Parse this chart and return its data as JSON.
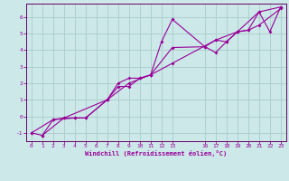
{
  "xlabel": "Windchill (Refroidissement éolien,°C)",
  "bg_color": "#cce8e8",
  "grid_color": "#aacccc",
  "line_color": "#990099",
  "spine_color": "#660066",
  "xlim": [
    -0.5,
    23.5
  ],
  "ylim": [
    -1.5,
    6.8
  ],
  "yticks": [
    -1,
    0,
    1,
    2,
    3,
    4,
    5,
    6
  ],
  "xticks": [
    0,
    1,
    2,
    3,
    4,
    5,
    6,
    7,
    8,
    9,
    10,
    11,
    12,
    13,
    16,
    17,
    18,
    19,
    20,
    21,
    22,
    23
  ],
  "line1": [
    [
      0,
      -1.0
    ],
    [
      1,
      -1.15
    ],
    [
      2,
      -0.2
    ],
    [
      3,
      -0.1
    ],
    [
      4,
      -0.1
    ],
    [
      5,
      -0.1
    ],
    [
      7,
      1.0
    ],
    [
      8,
      2.0
    ],
    [
      9,
      2.3
    ],
    [
      10,
      2.3
    ],
    [
      11,
      2.5
    ],
    [
      12,
      4.5
    ],
    [
      13,
      5.85
    ],
    [
      16,
      4.2
    ],
    [
      17,
      4.6
    ],
    [
      18,
      4.5
    ],
    [
      19,
      5.1
    ],
    [
      20,
      5.2
    ],
    [
      21,
      6.3
    ],
    [
      22,
      5.1
    ],
    [
      23,
      6.6
    ]
  ],
  "line2": [
    [
      0,
      -1.0
    ],
    [
      2,
      -0.2
    ],
    [
      4,
      -0.1
    ],
    [
      5,
      -0.1
    ],
    [
      7,
      1.0
    ],
    [
      8,
      1.8
    ],
    [
      9,
      1.8
    ],
    [
      10,
      2.3
    ],
    [
      11,
      2.5
    ],
    [
      13,
      4.15
    ],
    [
      16,
      4.2
    ],
    [
      17,
      3.85
    ],
    [
      18,
      4.5
    ],
    [
      19,
      5.1
    ],
    [
      20,
      5.2
    ],
    [
      21,
      5.5
    ],
    [
      23,
      6.5
    ]
  ],
  "line3": [
    [
      1,
      -1.15
    ],
    [
      3,
      -0.1
    ],
    [
      7,
      1.0
    ],
    [
      9,
      2.0
    ],
    [
      11,
      2.5
    ],
    [
      13,
      3.2
    ],
    [
      17,
      4.6
    ],
    [
      19,
      5.1
    ],
    [
      21,
      6.3
    ],
    [
      23,
      6.6
    ]
  ]
}
